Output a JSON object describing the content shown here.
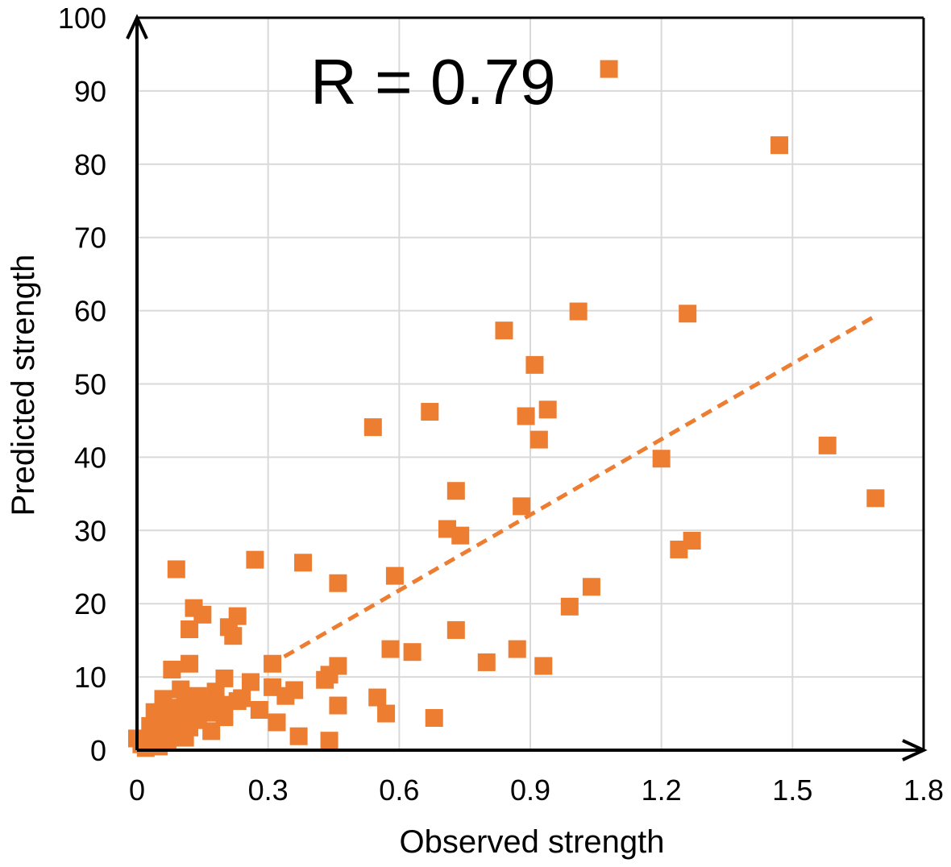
{
  "chart_data": {
    "type": "scatter",
    "title": "",
    "xlabel": "Observed strength",
    "ylabel": "Predicted strength",
    "annotation": "R = 0.79",
    "xlim": [
      0,
      1.8
    ],
    "ylim": [
      0,
      100
    ],
    "xticks": [
      "0",
      "0.3",
      "0.6",
      "0.9",
      "1.2",
      "1.5",
      "1.8"
    ],
    "yticks": [
      "0",
      "10",
      "20",
      "30",
      "40",
      "50",
      "60",
      "70",
      "80",
      "90",
      "100"
    ],
    "grid": true,
    "marker_color": "#ED7D31",
    "trendline": {
      "style": "dashed",
      "color": "#ED7D31",
      "x": [
        0.3,
        1.69
      ],
      "y": [
        11.5,
        59.3
      ]
    },
    "points": [
      [
        1.08,
        93
      ],
      [
        1.47,
        82.6
      ],
      [
        1.01,
        59.9
      ],
      [
        1.26,
        59.6
      ],
      [
        0.84,
        57.3
      ],
      [
        0.91,
        52.6
      ],
      [
        0.89,
        45.6
      ],
      [
        0.94,
        46.5
      ],
      [
        0.67,
        46.2
      ],
      [
        0.54,
        44.1
      ],
      [
        0.92,
        42.4
      ],
      [
        1.58,
        41.6
      ],
      [
        1.2,
        39.8
      ],
      [
        1.69,
        34.4
      ],
      [
        0.73,
        35.4
      ],
      [
        0.88,
        33.3
      ],
      [
        0.71,
        30.2
      ],
      [
        0.74,
        29.3
      ],
      [
        1.27,
        28.6
      ],
      [
        1.24,
        27.4
      ],
      [
        0.27,
        26
      ],
      [
        0.38,
        25.6
      ],
      [
        0.09,
        24.7
      ],
      [
        0.59,
        23.8
      ],
      [
        0.46,
        22.8
      ],
      [
        1.04,
        22.3
      ],
      [
        0.99,
        19.6
      ],
      [
        0.13,
        19.4
      ],
      [
        0.15,
        18.5
      ],
      [
        0.23,
        18.3
      ],
      [
        0.21,
        16.8
      ],
      [
        0.12,
        16.5
      ],
      [
        0.22,
        15.6
      ],
      [
        0.73,
        16.4
      ],
      [
        0.58,
        13.8
      ],
      [
        0.63,
        13.4
      ],
      [
        0.87,
        13.8
      ],
      [
        0.8,
        12
      ],
      [
        0.93,
        11.5
      ],
      [
        0.12,
        11.8
      ],
      [
        0.31,
        11.8
      ],
      [
        0.46,
        11.5
      ],
      [
        0.08,
        11
      ],
      [
        0.44,
        10.3
      ],
      [
        0.2,
        9.8
      ],
      [
        0.26,
        9.3
      ],
      [
        0.43,
        9.6
      ],
      [
        0.31,
        8.6
      ],
      [
        0.36,
        8.2
      ],
      [
        0.18,
        8
      ],
      [
        0.34,
        7.4
      ],
      [
        0.55,
        7.2
      ],
      [
        0.06,
        7
      ],
      [
        0.1,
        8.3
      ],
      [
        0.14,
        7.4
      ],
      [
        0.23,
        6.7
      ],
      [
        0.46,
        6.1
      ],
      [
        0.28,
        5.5
      ],
      [
        0.57,
        5
      ],
      [
        0.04,
        5.2
      ],
      [
        0.16,
        5.1
      ],
      [
        0.08,
        4.9
      ],
      [
        0.2,
        4.5
      ],
      [
        0.68,
        4.4
      ],
      [
        0.32,
        3.8
      ],
      [
        0.03,
        3.3
      ],
      [
        0.12,
        3.1
      ],
      [
        0.05,
        2.8
      ],
      [
        0.17,
        2.6
      ],
      [
        0.09,
        2.4
      ],
      [
        0.37,
        1.9
      ],
      [
        0.11,
        1.7
      ],
      [
        0.44,
        1.3
      ],
      [
        0.02,
        1.5
      ],
      [
        0.07,
        1.2
      ],
      [
        0,
        1.6
      ],
      [
        0.01,
        0.8
      ],
      [
        0.05,
        0.5
      ],
      [
        0.02,
        0.3
      ],
      [
        0.06,
        6.2
      ],
      [
        0.09,
        5.8
      ],
      [
        0.11,
        6.8
      ],
      [
        0.13,
        5.9
      ],
      [
        0.15,
        6.5
      ],
      [
        0.1,
        3.9
      ],
      [
        0.07,
        4.3
      ],
      [
        0.19,
        6.2
      ],
      [
        0.24,
        7.1
      ],
      [
        0.14,
        4.1
      ]
    ]
  }
}
